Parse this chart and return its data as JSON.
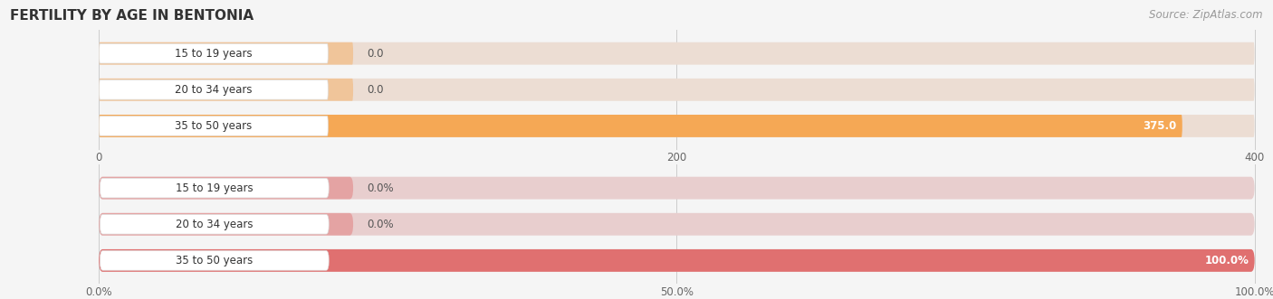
{
  "title": "FERTILITY BY AGE IN BENTONIA",
  "source": "Source: ZipAtlas.com",
  "top_chart": {
    "categories": [
      "15 to 19 years",
      "20 to 34 years",
      "35 to 50 years"
    ],
    "values": [
      0.0,
      0.0,
      375.0
    ],
    "max_val": 400.0,
    "xlim": [
      0,
      400
    ],
    "xticks": [
      0.0,
      200.0,
      400.0
    ],
    "bar_color": "#F5A855",
    "bar_bg_color": "#ECDDD3",
    "label_bg_color": "#F0EAE2",
    "value_labels": [
      "0.0",
      "0.0",
      "375.0"
    ],
    "val_label_color_inside": "#FFFFFF",
    "val_label_color_outside": "#888888"
  },
  "bottom_chart": {
    "categories": [
      "15 to 19 years",
      "20 to 34 years",
      "35 to 50 years"
    ],
    "values": [
      0.0,
      0.0,
      100.0
    ],
    "max_val": 100.0,
    "xlim": [
      0,
      100
    ],
    "xticks": [
      0.0,
      50.0,
      100.0
    ],
    "xtick_labels": [
      "0.0%",
      "50.0%",
      "100.0%"
    ],
    "bar_color": "#E07070",
    "bar_bg_color": "#E8CECE",
    "label_bg_color": "#EDE5E5",
    "value_labels": [
      "0.0%",
      "0.0%",
      "100.0%"
    ],
    "val_label_color_inside": "#FFFFFF",
    "val_label_color_outside": "#888888"
  },
  "bg_color": "#F5F5F5",
  "chart_bg": "#F5F5F5",
  "title_fontsize": 11,
  "label_fontsize": 8.5,
  "tick_fontsize": 8.5,
  "source_fontsize": 8.5
}
